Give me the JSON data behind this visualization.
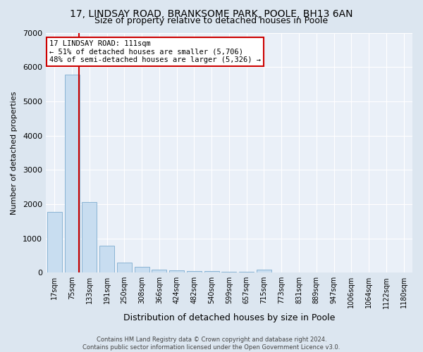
{
  "title": "17, LINDSAY ROAD, BRANKSOME PARK, POOLE, BH13 6AN",
  "subtitle": "Size of property relative to detached houses in Poole",
  "xlabel": "Distribution of detached houses by size in Poole",
  "ylabel": "Number of detached properties",
  "footer_line1": "Contains HM Land Registry data © Crown copyright and database right 2024.",
  "footer_line2": "Contains public sector information licensed under the Open Government Licence v3.0.",
  "categories": [
    "17sqm",
    "75sqm",
    "133sqm",
    "191sqm",
    "250sqm",
    "308sqm",
    "366sqm",
    "424sqm",
    "482sqm",
    "540sqm",
    "599sqm",
    "657sqm",
    "715sqm",
    "773sqm",
    "831sqm",
    "889sqm",
    "947sqm",
    "1006sqm",
    "1064sqm",
    "1122sqm",
    "1180sqm"
  ],
  "values": [
    1780,
    5780,
    2060,
    780,
    300,
    175,
    95,
    65,
    50,
    35,
    25,
    20,
    80,
    0,
    0,
    0,
    0,
    0,
    0,
    0,
    0
  ],
  "bar_color": "#c8ddf0",
  "bar_edge_color": "#8ab4d4",
  "red_line_color": "#cc0000",
  "annotation_title": "17 LINDSAY ROAD: 111sqm",
  "annotation_line1": "← 51% of detached houses are smaller (5,706)",
  "annotation_line2": "48% of semi-detached houses are larger (5,326) →",
  "annotation_box_facecolor": "#ffffff",
  "annotation_box_edgecolor": "#cc0000",
  "ylim": [
    0,
    7000
  ],
  "yticks": [
    0,
    1000,
    2000,
    3000,
    4000,
    5000,
    6000,
    7000
  ],
  "background_color": "#dce6f0",
  "plot_bg_color": "#eaf0f8",
  "grid_color": "#ffffff",
  "title_fontsize": 10,
  "subtitle_fontsize": 9,
  "xlabel_fontsize": 9,
  "ylabel_fontsize": 8,
  "tick_fontsize": 7,
  "footer_fontsize": 6,
  "annotation_fontsize": 7.5
}
